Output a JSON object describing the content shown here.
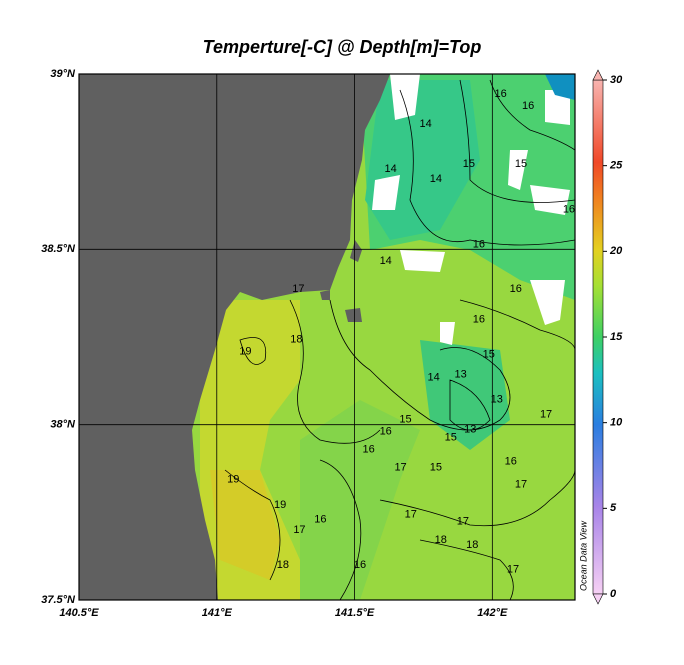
{
  "map": {
    "title": "Temperture[-C] @ Depth[m]=Top",
    "xlim": [
      140.5,
      142.3
    ],
    "xticks": [
      {
        "value": 140.5,
        "label": "140.5°E"
      },
      {
        "value": 141,
        "label": "141°E"
      },
      {
        "value": 141.5,
        "label": "141.5°E"
      },
      {
        "value": 142,
        "label": "142°E"
      }
    ],
    "ylim": [
      37.5,
      39
    ],
    "yticks": [
      {
        "value": 37.5,
        "label": "37.5°N"
      },
      {
        "value": 38,
        "label": "38°N"
      },
      {
        "value": 38.5,
        "label": "38.5°N"
      },
      {
        "value": 39,
        "label": "39°N"
      }
    ],
    "grid": true,
    "colorbar": {
      "lim": [
        0,
        30
      ],
      "ticks": [
        0,
        5,
        10,
        15,
        20,
        25,
        30
      ]
    },
    "watermark": "Ocean Data View",
    "contour_labels": [
      {
        "label": "19",
        "lon": 141.104,
        "lat": 38.209
      },
      {
        "label": "18",
        "lon": 141.289,
        "lat": 38.243
      },
      {
        "label": "17",
        "lon": 141.296,
        "lat": 38.386
      },
      {
        "label": "19",
        "lon": 141.06,
        "lat": 37.843
      },
      {
        "label": "19",
        "lon": 141.23,
        "lat": 37.771
      },
      {
        "label": "17",
        "lon": 141.3,
        "lat": 37.7
      },
      {
        "label": "18",
        "lon": 141.24,
        "lat": 37.6
      },
      {
        "label": "16",
        "lon": 141.376,
        "lat": 37.729
      },
      {
        "label": "16",
        "lon": 141.52,
        "lat": 37.6
      },
      {
        "label": "14",
        "lon": 141.758,
        "lat": 38.857
      },
      {
        "label": "14",
        "lon": 141.631,
        "lat": 38.729
      },
      {
        "label": "14",
        "lon": 141.795,
        "lat": 38.7
      },
      {
        "label": "15",
        "lon": 141.915,
        "lat": 38.743
      },
      {
        "label": "16",
        "lon": 142.03,
        "lat": 38.943
      },
      {
        "label": "16",
        "lon": 141.951,
        "lat": 38.514
      },
      {
        "label": "16",
        "lon": 142.085,
        "lat": 38.386
      },
      {
        "label": "14",
        "lon": 141.613,
        "lat": 38.466
      },
      {
        "label": "16",
        "lon": 141.951,
        "lat": 38.3
      },
      {
        "label": "15",
        "lon": 141.987,
        "lat": 38.2
      },
      {
        "label": "13",
        "lon": 141.885,
        "lat": 38.143
      },
      {
        "label": "14",
        "lon": 141.787,
        "lat": 38.134
      },
      {
        "label": "15",
        "lon": 141.685,
        "lat": 38.014
      },
      {
        "label": "16",
        "lon": 141.613,
        "lat": 37.98
      },
      {
        "label": "16",
        "lon": 141.551,
        "lat": 37.929
      },
      {
        "label": "17",
        "lon": 141.667,
        "lat": 37.877
      },
      {
        "label": "15",
        "lon": 141.795,
        "lat": 37.877
      },
      {
        "label": "15",
        "lon": 141.849,
        "lat": 37.963
      },
      {
        "label": "13",
        "lon": 141.92,
        "lat": 37.986
      },
      {
        "label": "13",
        "lon": 142.016,
        "lat": 38.071
      },
      {
        "label": "16",
        "lon": 142.067,
        "lat": 37.894
      },
      {
        "label": "17",
        "lon": 142.195,
        "lat": 38.029
      },
      {
        "label": "17",
        "lon": 142.104,
        "lat": 37.829
      },
      {
        "label": "17",
        "lon": 141.704,
        "lat": 37.743
      },
      {
        "label": "17",
        "lon": 141.893,
        "lat": 37.723
      },
      {
        "label": "18",
        "lon": 141.813,
        "lat": 37.671
      },
      {
        "label": "18",
        "lon": 141.927,
        "lat": 37.657
      },
      {
        "label": "17",
        "lon": 142.075,
        "lat": 37.586
      },
      {
        "label": "16",
        "lon": 142.13,
        "lat": 38.909
      },
      {
        "label": "15",
        "lon": 142.104,
        "lat": 38.743
      },
      {
        "label": "16",
        "lon": 142.278,
        "lat": 38.614
      }
    ]
  }
}
